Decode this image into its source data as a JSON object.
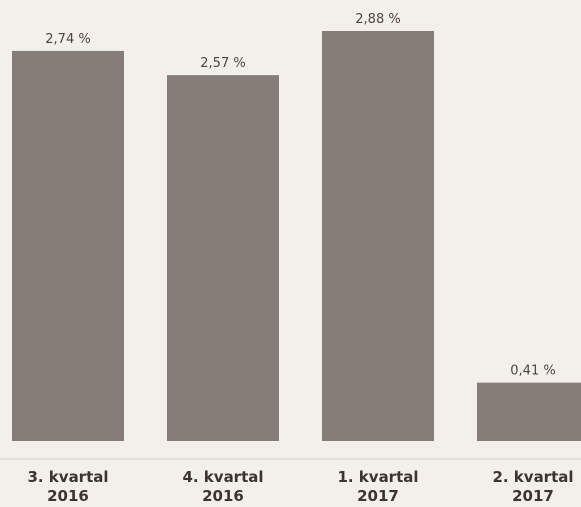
{
  "chart_data": {
    "type": "bar",
    "categories": [
      [
        "3. kvartal",
        "2016"
      ],
      [
        "4. kvartal",
        "2016"
      ],
      [
        "1. kvartal",
        "2017"
      ],
      [
        "2. kvartal",
        "2017"
      ]
    ],
    "values": [
      2.74,
      2.57,
      2.88,
      0.41
    ],
    "value_labels": [
      "2,74 %",
      "2,57 %",
      "2,88 %",
      "0,41 %"
    ],
    "title": "",
    "xlabel": "",
    "ylabel": "",
    "ylim": [
      0,
      2.88
    ],
    "grid": false,
    "legend": "none",
    "colors": {
      "background": "#f3efeb",
      "bar": "#857d78",
      "text": "#3a3532",
      "baseline": "#d2ccc7"
    }
  }
}
